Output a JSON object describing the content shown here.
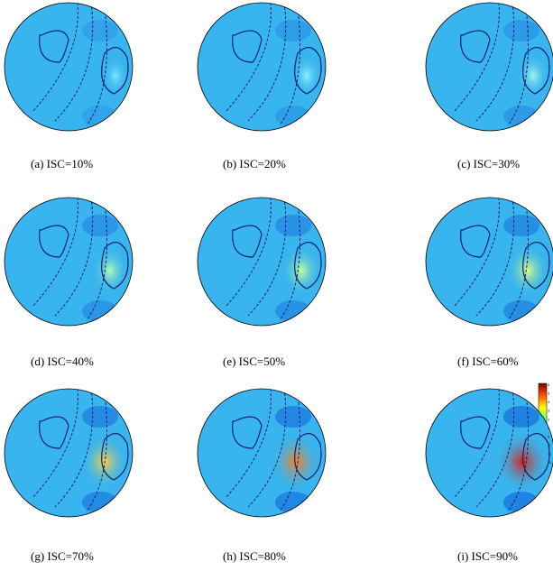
{
  "panels": [
    {
      "caption": "(a) ISC=10%"
    },
    {
      "caption": "(b) ISC=20%"
    },
    {
      "caption": "(c) ISC=30%"
    },
    {
      "caption": "(d) ISC=40%"
    },
    {
      "caption": "(e) ISC=50%"
    },
    {
      "caption": "(f) ISC=60%"
    },
    {
      "caption": "(g) ISC=70%"
    },
    {
      "caption": "(h) ISC=80%"
    },
    {
      "caption": "(i) ISC=90%"
    }
  ],
  "colorbar": {
    "ticks": [
      "6",
      "5",
      "4",
      "3",
      "2",
      "1",
      "0",
      "-1",
      "-2",
      "-3"
    ]
  }
}
